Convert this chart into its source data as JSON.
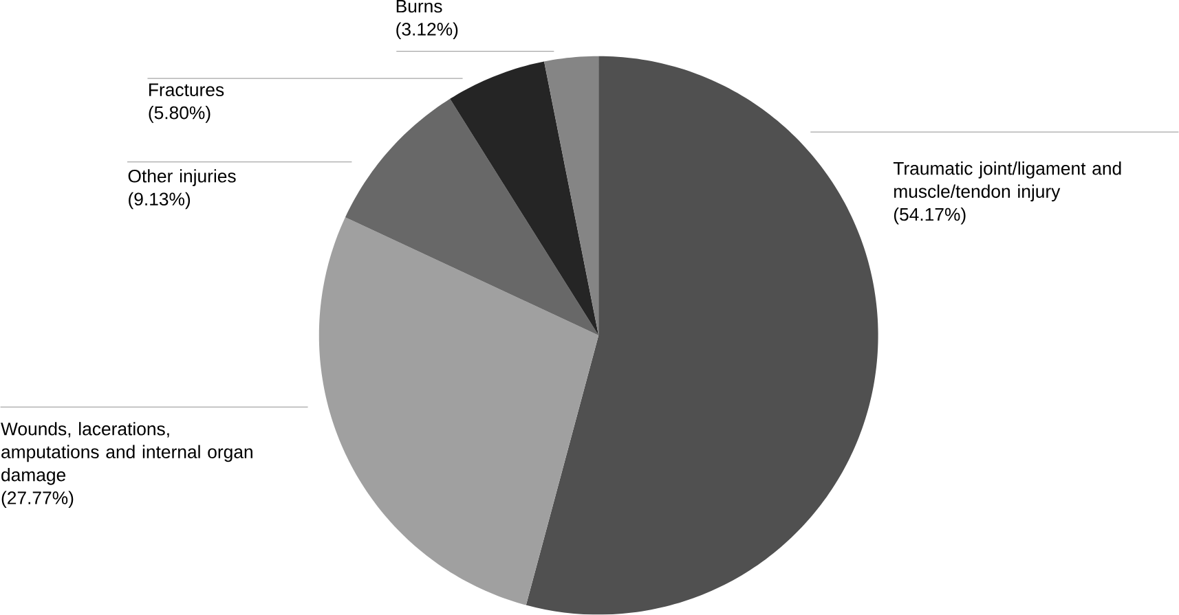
{
  "chart_data": {
    "type": "pie",
    "categories": [
      "Traumatic joint/ligament and muscle/tendon injury",
      "Wounds, lacerations, amputations and internal organ damage",
      "Other injuries",
      "Fractures",
      "Burns"
    ],
    "values": [
      54.17,
      27.77,
      9.13,
      5.8,
      3.12
    ],
    "value_labels": [
      "(54.17%)",
      "(27.77%)",
      "(9.13%)",
      "(5.80%)",
      "(3.12%)"
    ],
    "colors": [
      "#505050",
      "#a0a0a0",
      "#686868",
      "#252525",
      "#858585"
    ]
  }
}
